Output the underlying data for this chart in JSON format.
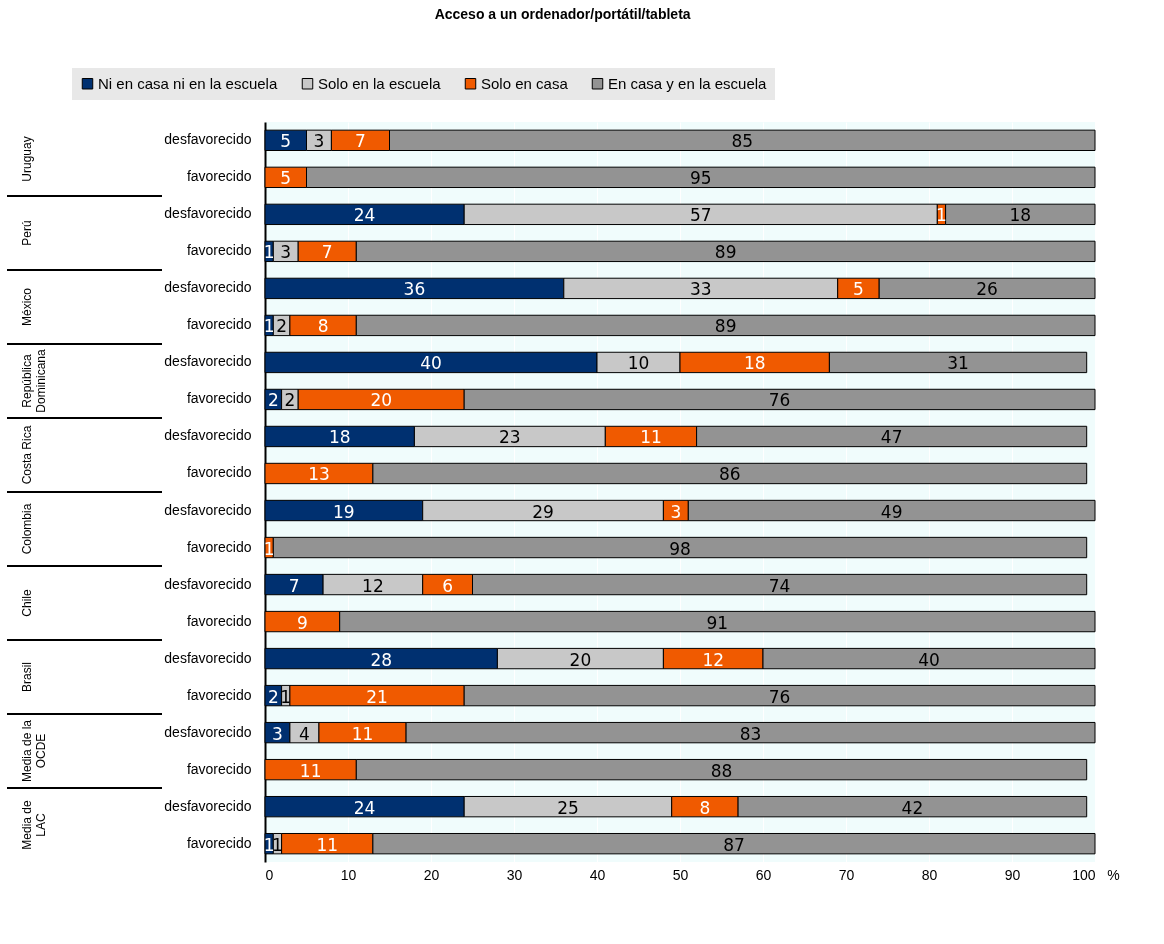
{
  "chart_data": {
    "type": "bar",
    "orientation": "horizontal",
    "stacked": true,
    "title": "Acceso a un ordenador/portátil/tableta",
    "xlabel": "%",
    "categories": [
      "desfavorecido",
      "favorecido",
      "desfavorecido",
      "favorecido",
      "desfavorecido",
      "favorecido",
      "desfavorecido",
      "favorecido",
      "desfavorecido",
      "favorecido",
      "desfavorecido",
      "favorecido",
      "desfavorecido",
      "favorecido",
      "desfavorecido",
      "favorecido",
      "desfavorecido",
      "favorecido",
      "desfavorecido",
      "favorecido"
    ],
    "annotations": [
      "Uruguay",
      "Perú",
      "México",
      "República Dominicana",
      "Costa Rica",
      "Colombia",
      "Chile",
      "Brasil",
      "Media de la OCDE",
      "Media de LAC"
    ],
    "series": [
      {
        "name": "Ni en casa ni en la escuela",
        "color": "#003070",
        "values": [
          5,
          null,
          24,
          1,
          36,
          1,
          40,
          2,
          18,
          null,
          19,
          null,
          7,
          null,
          28,
          2,
          3,
          null,
          24,
          1
        ],
        "value_labels": [
          "5",
          null,
          "24",
          "1",
          "36",
          "1",
          "40",
          "2",
          "18",
          null,
          "19",
          null,
          "7",
          null,
          "28",
          "2",
          "3",
          null,
          "24",
          "1"
        ]
      },
      {
        "name": "Solo en la escuela",
        "color": "#c8c8c8",
        "values": [
          3,
          null,
          57,
          3,
          33,
          2,
          10,
          2,
          23,
          null,
          29,
          null,
          12,
          null,
          20,
          1,
          3.5,
          null,
          25,
          1
        ],
        "value_labels": [
          "3",
          null,
          "57",
          "3",
          "33",
          "2",
          "10",
          "2",
          "23",
          null,
          "29",
          null,
          "12",
          null,
          "20",
          "1",
          "4",
          null,
          "25",
          "1"
        ]
      },
      {
        "name": "Solo en casa",
        "color": "#f05a00",
        "values": [
          7,
          5,
          1,
          7,
          5,
          8,
          18,
          20,
          11,
          13,
          3,
          1,
          6,
          9,
          12,
          21,
          10.5,
          11,
          8,
          11
        ],
        "value_labels": [
          "7",
          "5",
          "1",
          "7",
          "5",
          "8",
          "18",
          "20",
          "11",
          "13",
          "3",
          "1",
          "6",
          "9",
          "12",
          "21",
          "11",
          "11",
          "8",
          "11"
        ]
      },
      {
        "name": "En casa y en la escuela",
        "color": "#939393",
        "values": [
          85,
          95,
          18,
          89,
          26,
          89,
          31,
          76,
          47,
          86,
          49,
          98,
          74,
          91,
          40,
          76,
          83,
          88,
          42,
          87
        ],
        "value_labels": [
          "85",
          "95",
          "18",
          "89",
          "26",
          "89",
          "31",
          "76",
          "47",
          "86",
          "49",
          "98",
          "74",
          "91",
          "40",
          "76",
          "83",
          "88",
          "42",
          "87"
        ]
      }
    ],
    "xlim": [
      0,
      100
    ],
    "xticks": [
      0,
      10,
      20,
      30,
      40,
      50,
      60,
      70,
      80,
      90,
      100
    ],
    "grid": "x",
    "legend": "top"
  }
}
